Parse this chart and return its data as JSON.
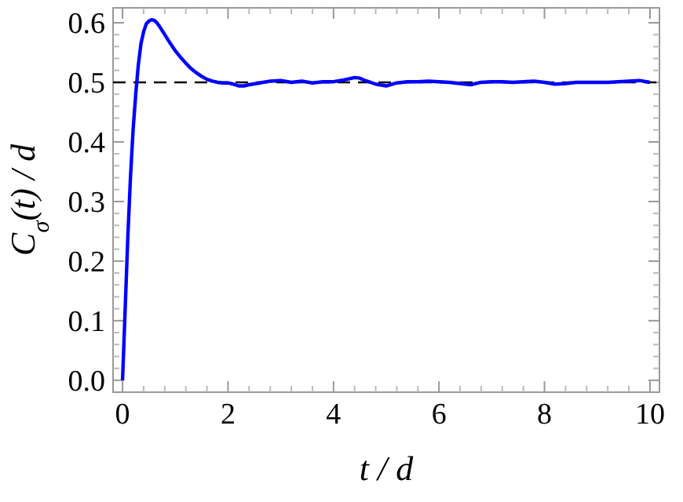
{
  "chart_data": {
    "type": "line",
    "xlabel": "t / d",
    "ylabel": "C$_{σ}$(t) / d",
    "x": [
      0,
      0.05,
      0.1,
      0.15,
      0.2,
      0.25,
      0.3,
      0.35,
      0.4,
      0.45,
      0.5,
      0.55,
      0.6,
      0.65,
      0.7,
      0.8,
      0.9,
      1.0,
      1.1,
      1.2,
      1.3,
      1.4,
      1.5,
      1.6,
      1.7,
      1.8,
      1.9,
      2.0,
      2.1,
      2.2,
      2.3,
      2.4,
      2.6,
      2.8,
      3.0,
      3.2,
      3.4,
      3.6,
      3.8,
      4.0,
      4.2,
      4.4,
      4.5,
      4.6,
      4.8,
      5.0,
      5.2,
      5.4,
      5.6,
      5.8,
      6.0,
      6.2,
      6.4,
      6.6,
      6.8,
      7.0,
      7.2,
      7.4,
      7.6,
      7.8,
      8.0,
      8.2,
      8.4,
      8.6,
      8.8,
      9.0,
      9.2,
      9.4,
      9.6,
      9.8,
      10.0
    ],
    "series": [
      {
        "color": "#0000ff",
        "values": [
          0,
          0.12,
          0.24,
          0.34,
          0.42,
          0.48,
          0.53,
          0.565,
          0.585,
          0.598,
          0.603,
          0.605,
          0.604,
          0.6,
          0.594,
          0.58,
          0.566,
          0.553,
          0.542,
          0.532,
          0.523,
          0.516,
          0.51,
          0.505,
          0.502,
          0.5,
          0.499,
          0.499,
          0.497,
          0.494,
          0.494,
          0.496,
          0.499,
          0.502,
          0.503,
          0.5,
          0.502,
          0.499,
          0.501,
          0.501,
          0.504,
          0.508,
          0.507,
          0.503,
          0.497,
          0.494,
          0.499,
          0.501,
          0.501,
          0.502,
          0.501,
          0.5,
          0.498,
          0.496,
          0.5,
          0.501,
          0.501,
          0.5,
          0.501,
          0.502,
          0.5,
          0.497,
          0.498,
          0.5,
          0.5,
          0.5,
          0.5,
          0.501,
          0.502,
          0.503,
          0.5
        ]
      }
    ],
    "xlim": [
      -0.18,
      10.18
    ],
    "ylim": [
      -0.02,
      0.625
    ],
    "xticks": [
      0,
      2,
      4,
      6,
      8,
      10
    ],
    "yticks": [
      {
        "value": 0,
        "label": "0.0"
      },
      0.1,
      0.2,
      0.3,
      0.4,
      0.5,
      0.6
    ],
    "ref_lines": [
      {
        "axis": "y",
        "value": 0.5,
        "color": "#000000",
        "line_style": "dashed"
      }
    ],
    "grid": false,
    "marker": "none",
    "line_style": "solid"
  }
}
